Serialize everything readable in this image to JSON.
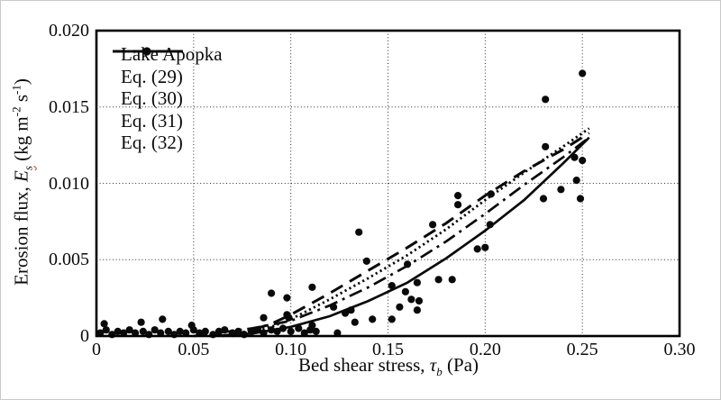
{
  "chart_data": {
    "type": "scatter",
    "title": "",
    "xlabel": "Bed shear stress, τb (Pa)",
    "ylabel": "Erosion flux, Es (kg m⁻² s⁻¹)",
    "xlabel_parts": {
      "pre": "Bed shear stress, ",
      "sym": "τ",
      "sub": "b",
      "post": " (Pa)"
    },
    "ylabel_parts": {
      "pre": "Erosion flux, ",
      "sym": "E",
      "sub": "s",
      "unit_pre": " (kg m",
      "sup1": "-2",
      "unit_mid": " s",
      "sup2": "-1",
      "unit_post": ")"
    },
    "xlim": [
      0,
      0.3
    ],
    "ylim": [
      0,
      0.02
    ],
    "grid": true,
    "legend_position": "top-left-inside",
    "xticks": [
      {
        "v": 0,
        "label": "0"
      },
      {
        "v": 0.05,
        "label": "0.05"
      },
      {
        "v": 0.1,
        "label": "0.10"
      },
      {
        "v": 0.15,
        "label": "0.15"
      },
      {
        "v": 0.2,
        "label": "0.20"
      },
      {
        "v": 0.25,
        "label": "0.25"
      },
      {
        "v": 0.3,
        "label": "0.30"
      }
    ],
    "yticks": [
      {
        "v": 0,
        "label": "0"
      },
      {
        "v": 0.005,
        "label": "0.005"
      },
      {
        "v": 0.01,
        "label": "0.010"
      },
      {
        "v": 0.015,
        "label": "0.015"
      },
      {
        "v": 0.02,
        "label": "0.020"
      }
    ],
    "scatter": {
      "name": "Lake Apopka",
      "marker": "filled-circle",
      "color": "#0a0a0a",
      "points": [
        [
          0.002,
          0.0002
        ],
        [
          0.005,
          0.0004
        ],
        [
          0.008,
          0.0001
        ],
        [
          0.011,
          0.0003
        ],
        [
          0.014,
          0.0002
        ],
        [
          0.017,
          0.0004
        ],
        [
          0.02,
          0.0002
        ],
        [
          0.024,
          0.0003
        ],
        [
          0.027,
          0.0001
        ],
        [
          0.03,
          0.0004
        ],
        [
          0.033,
          0.0002
        ],
        [
          0.037,
          0.0003
        ],
        [
          0.04,
          0.0001
        ],
        [
          0.043,
          0.0003
        ],
        [
          0.046,
          0.0002
        ],
        [
          0.05,
          0.0004
        ],
        [
          0.053,
          0.0002
        ],
        [
          0.056,
          0.0003
        ],
        [
          0.06,
          0.0001
        ],
        [
          0.063,
          0.0003
        ],
        [
          0.066,
          0.0004
        ],
        [
          0.07,
          0.0002
        ],
        [
          0.073,
          0.0003
        ],
        [
          0.076,
          0.0001
        ],
        [
          0.08,
          0.0003
        ],
        [
          0.083,
          0.0004
        ],
        [
          0.086,
          0.0002
        ],
        [
          0.09,
          0.0004
        ],
        [
          0.093,
          0.0003
        ],
        [
          0.096,
          0.0005
        ],
        [
          0.1,
          0.0003
        ],
        [
          0.104,
          0.0005
        ],
        [
          0.107,
          0.0002
        ],
        [
          0.11,
          0.0004
        ],
        [
          0.113,
          0.0003
        ],
        [
          0.124,
          0.0002
        ],
        [
          0.004,
          0.0008
        ],
        [
          0.023,
          0.0009
        ],
        [
          0.034,
          0.0011
        ],
        [
          0.049,
          0.0007
        ],
        [
          0.086,
          0.0012
        ],
        [
          0.098,
          0.0014
        ],
        [
          0.099,
          0.0012
        ],
        [
          0.111,
          0.0007
        ],
        [
          0.09,
          0.0028
        ],
        [
          0.098,
          0.0025
        ],
        [
          0.111,
          0.0032
        ],
        [
          0.122,
          0.0019
        ],
        [
          0.128,
          0.0015
        ],
        [
          0.131,
          0.0017
        ],
        [
          0.133,
          0.0009
        ],
        [
          0.142,
          0.0011
        ],
        [
          0.152,
          0.0011
        ],
        [
          0.135,
          0.0068
        ],
        [
          0.139,
          0.0049
        ],
        [
          0.152,
          0.0033
        ],
        [
          0.156,
          0.0019
        ],
        [
          0.159,
          0.0029
        ],
        [
          0.16,
          0.0047
        ],
        [
          0.162,
          0.0024
        ],
        [
          0.165,
          0.0035
        ],
        [
          0.166,
          0.0023
        ],
        [
          0.165,
          0.0017
        ],
        [
          0.176,
          0.0037
        ],
        [
          0.183,
          0.0037
        ],
        [
          0.173,
          0.0073
        ],
        [
          0.186,
          0.0092
        ],
        [
          0.186,
          0.0086
        ],
        [
          0.196,
          0.0057
        ],
        [
          0.2,
          0.0058
        ],
        [
          0.2025,
          0.0073
        ],
        [
          0.203,
          0.0093
        ],
        [
          0.23,
          0.009
        ],
        [
          0.231,
          0.0124
        ],
        [
          0.231,
          0.0155
        ],
        [
          0.239,
          0.0096
        ],
        [
          0.246,
          0.0117
        ],
        [
          0.247,
          0.0102
        ],
        [
          0.249,
          0.009
        ],
        [
          0.25,
          0.0115
        ],
        [
          0.25,
          0.0172
        ]
      ]
    },
    "series": [
      {
        "name": "Eq. (29)",
        "style": "solid",
        "color": "#0a0a0a",
        "points": [
          [
            0.058,
            0
          ],
          [
            0.08,
            0.00016
          ],
          [
            0.1,
            0.0006
          ],
          [
            0.12,
            0.0013
          ],
          [
            0.14,
            0.0023
          ],
          [
            0.16,
            0.0035
          ],
          [
            0.18,
            0.0051
          ],
          [
            0.2,
            0.0069
          ],
          [
            0.22,
            0.0089
          ],
          [
            0.24,
            0.0113
          ],
          [
            0.2535,
            0.013
          ]
        ]
      },
      {
        "name": "Eq. (30)",
        "style": "dash-dot",
        "color": "#0a0a0a",
        "points": [
          [
            0.05,
            0
          ],
          [
            0.08,
            0.0005
          ],
          [
            0.1,
            0.001
          ],
          [
            0.12,
            0.002
          ],
          [
            0.14,
            0.0032
          ],
          [
            0.16,
            0.0046
          ],
          [
            0.18,
            0.0062
          ],
          [
            0.2,
            0.008
          ],
          [
            0.22,
            0.0099
          ],
          [
            0.24,
            0.0117
          ],
          [
            0.2535,
            0.013
          ]
        ]
      },
      {
        "name": "Eq. (31)",
        "style": "long-dash",
        "color": "#0a0a0a",
        "points": [
          [
            0.07,
            0
          ],
          [
            0.09,
            0.0008
          ],
          [
            0.1,
            0.0014
          ],
          [
            0.12,
            0.0028
          ],
          [
            0.14,
            0.0043
          ],
          [
            0.16,
            0.0058
          ],
          [
            0.18,
            0.0074
          ],
          [
            0.2,
            0.0092
          ],
          [
            0.22,
            0.0108
          ],
          [
            0.24,
            0.0122
          ],
          [
            0.2535,
            0.0133
          ]
        ]
      },
      {
        "name": "Eq. (32)",
        "style": "dotted",
        "color": "#0a0a0a",
        "points": [
          [
            0.065,
            0
          ],
          [
            0.09,
            0.0006
          ],
          [
            0.1,
            0.0011
          ],
          [
            0.12,
            0.0024
          ],
          [
            0.14,
            0.0038
          ],
          [
            0.16,
            0.0053
          ],
          [
            0.18,
            0.007
          ],
          [
            0.2,
            0.0089
          ],
          [
            0.22,
            0.0107
          ],
          [
            0.24,
            0.0124
          ],
          [
            0.2535,
            0.0136
          ]
        ]
      }
    ]
  }
}
